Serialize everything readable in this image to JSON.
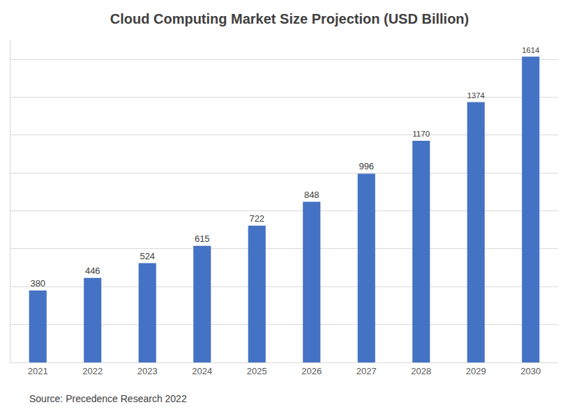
{
  "chart_data": {
    "type": "bar",
    "title": "Cloud Computing Market Size Projection (USD Billion)",
    "categories": [
      "2021",
      "2022",
      "2023",
      "2024",
      "2025",
      "2026",
      "2027",
      "2028",
      "2029",
      "2030"
    ],
    "values": [
      380,
      446,
      524,
      615,
      722,
      848,
      996,
      1170,
      1374,
      1614
    ],
    "color": "#4472c4",
    "ylim": [
      0,
      1700
    ],
    "yticks": [
      0,
      200,
      400,
      600,
      800,
      1000,
      1200,
      1400,
      1600
    ],
    "grid": true,
    "data_labels": true,
    "tick_labels": "x",
    "annotations": [
      "Source: Precedence Research 2022"
    ]
  }
}
